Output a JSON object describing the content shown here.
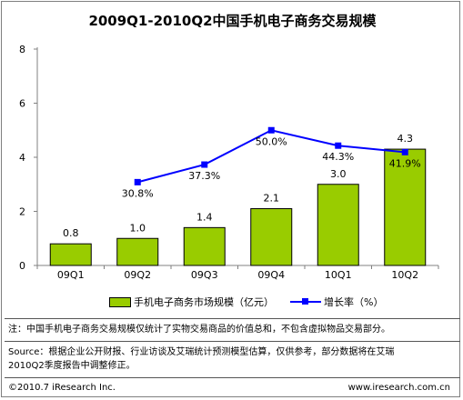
{
  "title": "2009Q1-2010Q2中国手机电子商务交易规模",
  "chart_data": {
    "type": "bar",
    "categories": [
      "09Q1",
      "09Q2",
      "09Q3",
      "09Q4",
      "10Q1",
      "10Q2"
    ],
    "series": [
      {
        "name": "手机电子商务市场规模（亿元）",
        "type": "bar",
        "color": "#99cc00",
        "values": [
          0.8,
          1.0,
          1.4,
          2.1,
          3.0,
          4.3
        ],
        "labels": [
          "0.8",
          "1.0",
          "1.4",
          "2.1",
          "3.0",
          "4.3"
        ]
      },
      {
        "name": "增长率（%）",
        "type": "line",
        "color": "#0000ff",
        "values": [
          null,
          30.8,
          37.3,
          50.0,
          44.3,
          41.9
        ],
        "labels": [
          "",
          "30.8%",
          "37.3%",
          "50.0%",
          "44.3%",
          "41.9%"
        ]
      }
    ],
    "yaxis": {
      "ticks": [
        "0",
        "2",
        "4",
        "6",
        "8"
      ],
      "ylim": [
        0,
        8
      ]
    },
    "secondary_axis_hidden": true,
    "legend_position": "bottom",
    "grid": false
  },
  "legend": {
    "bar_label": "手机电子商务市场规模（亿元）",
    "line_label": "增长率（%）"
  },
  "notes": {
    "note_line": "注：中国手机电子商务交易规模仅统计了实物交易商品的价值总和，不包含虚拟物品交易部分。",
    "source_line1": "Source：根据企业公开财报、行业访谈及艾瑞统计预测模型估算，仅供参考，部分数据将在艾瑞",
    "source_line2": "2010Q2季度报告中调整修正。"
  },
  "footer": {
    "copyright": "©2010.7 iResearch Inc.",
    "website": "www.iresearch.com.cn"
  }
}
